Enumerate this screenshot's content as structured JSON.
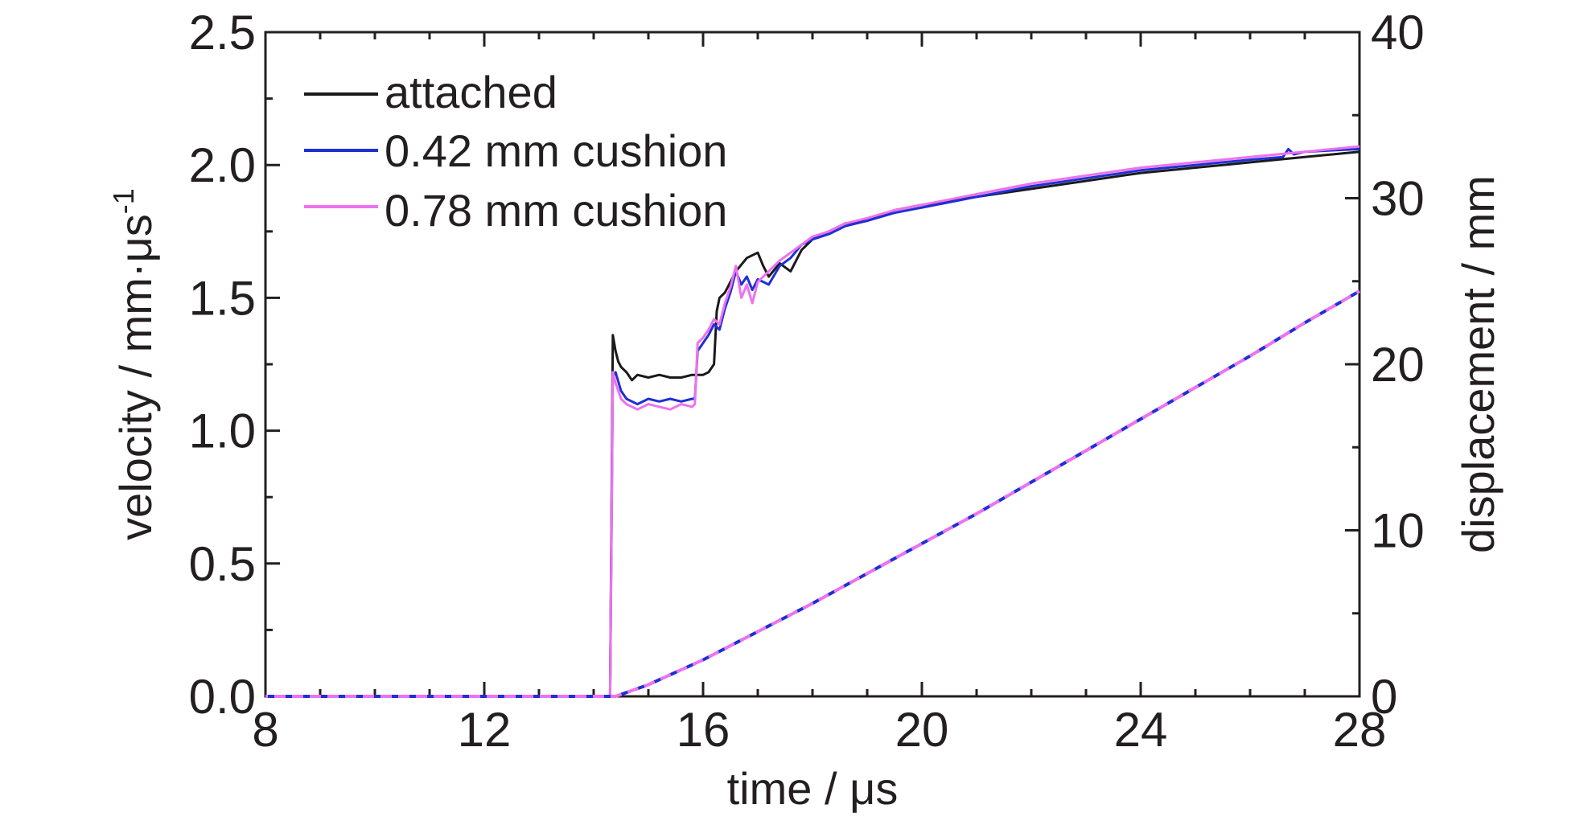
{
  "chart_data": {
    "type": "line",
    "xlabel": "time / μs",
    "ylabel_left": "velocity / mm·μs",
    "ylabel_left_superscript": "-1",
    "ylabel_right": "displacement / mm",
    "xlim": [
      8,
      28
    ],
    "ylim_left": [
      0.0,
      2.5
    ],
    "ylim_right": [
      0,
      40
    ],
    "x_ticks": [
      "8",
      "12",
      "16",
      "20",
      "24",
      "28"
    ],
    "y_left_ticks": [
      "0.0",
      "0.5",
      "1.0",
      "1.5",
      "2.0",
      "2.5"
    ],
    "y_right_ticks": [
      "0",
      "10",
      "20",
      "30",
      "40"
    ],
    "grid": false,
    "legend_position": "top-left",
    "legend": [
      {
        "label": "attached",
        "color": "#1a1a1a"
      },
      {
        "label": "0.42 mm cushion",
        "color": "#1f2fd6"
      },
      {
        "label": "0.78 mm cushion",
        "color": "#ee72ee"
      }
    ],
    "series": [
      {
        "name": "attached",
        "axis": "left",
        "color": "#1a1a1a",
        "dashed": false,
        "x": [
          8,
          14.3,
          14.35,
          14.4,
          14.45,
          14.5,
          14.6,
          14.7,
          14.8,
          15.0,
          15.2,
          15.4,
          15.6,
          15.8,
          16.0,
          16.1,
          16.2,
          16.25,
          16.3,
          16.4,
          16.6,
          16.8,
          17.0,
          17.1,
          17.2,
          17.4,
          17.6,
          17.8,
          18.0,
          18.3,
          18.6,
          19.0,
          19.5,
          20.0,
          21.0,
          22.0,
          23.0,
          24.0,
          25.0,
          26.0,
          27.0,
          28.0
        ],
        "y": [
          0.0,
          0.0,
          1.36,
          1.3,
          1.26,
          1.24,
          1.22,
          1.19,
          1.21,
          1.2,
          1.21,
          1.2,
          1.2,
          1.21,
          1.21,
          1.22,
          1.25,
          1.45,
          1.5,
          1.52,
          1.6,
          1.65,
          1.67,
          1.62,
          1.58,
          1.63,
          1.6,
          1.68,
          1.72,
          1.75,
          1.78,
          1.79,
          1.83,
          1.85,
          1.88,
          1.91,
          1.94,
          1.97,
          1.99,
          2.01,
          2.03,
          2.05
        ]
      },
      {
        "name": "0.42 mm cushion",
        "axis": "left",
        "color": "#1f2fd6",
        "dashed": false,
        "x": [
          8,
          14.3,
          14.35,
          14.4,
          14.5,
          14.6,
          14.8,
          15.0,
          15.2,
          15.4,
          15.6,
          15.8,
          15.85,
          15.9,
          16.0,
          16.1,
          16.2,
          16.3,
          16.4,
          16.5,
          16.6,
          16.7,
          16.8,
          16.9,
          17.0,
          17.2,
          17.4,
          17.6,
          17.8,
          18.0,
          18.3,
          18.6,
          19.0,
          19.5,
          20.0,
          20.5,
          21.0,
          22.0,
          23.0,
          24.0,
          25.0,
          26.0,
          26.6,
          26.7,
          26.8,
          27.0,
          28.0
        ],
        "y": [
          0.0,
          0.0,
          1.2,
          1.22,
          1.15,
          1.12,
          1.1,
          1.12,
          1.11,
          1.12,
          1.11,
          1.12,
          1.12,
          1.3,
          1.33,
          1.36,
          1.4,
          1.38,
          1.46,
          1.52,
          1.6,
          1.55,
          1.58,
          1.53,
          1.57,
          1.55,
          1.62,
          1.65,
          1.7,
          1.72,
          1.74,
          1.77,
          1.79,
          1.82,
          1.84,
          1.86,
          1.88,
          1.92,
          1.95,
          1.98,
          2.0,
          2.02,
          2.03,
          2.06,
          2.04,
          2.05,
          2.06
        ]
      },
      {
        "name": "0.78 mm cushion",
        "axis": "left",
        "color": "#ee72ee",
        "dashed": false,
        "x": [
          8,
          14.3,
          14.35,
          14.4,
          14.5,
          14.6,
          14.8,
          15.0,
          15.2,
          15.4,
          15.6,
          15.8,
          15.85,
          15.9,
          16.0,
          16.1,
          16.2,
          16.3,
          16.4,
          16.5,
          16.6,
          16.7,
          16.8,
          16.9,
          17.0,
          17.2,
          17.4,
          17.6,
          17.8,
          18.0,
          18.3,
          18.6,
          19.0,
          19.5,
          20.0,
          20.5,
          21.0,
          22.0,
          23.0,
          24.0,
          25.0,
          26.0,
          27.0,
          28.0
        ],
        "y": [
          0.0,
          0.0,
          1.22,
          1.18,
          1.12,
          1.1,
          1.08,
          1.1,
          1.09,
          1.08,
          1.1,
          1.09,
          1.1,
          1.33,
          1.35,
          1.38,
          1.42,
          1.4,
          1.48,
          1.54,
          1.62,
          1.5,
          1.55,
          1.48,
          1.56,
          1.6,
          1.64,
          1.67,
          1.7,
          1.73,
          1.75,
          1.78,
          1.8,
          1.83,
          1.85,
          1.87,
          1.89,
          1.93,
          1.96,
          1.99,
          2.01,
          2.03,
          2.05,
          2.07
        ]
      },
      {
        "name": "0.42 mm cushion",
        "axis": "right",
        "color": "#1f2fd6",
        "dashed": true,
        "x": [
          8,
          14.4,
          15.0,
          16.0,
          17.0,
          18.0,
          19.0,
          20.0,
          21.0,
          22.0,
          23.0,
          24.0,
          25.0,
          26.0,
          27.0,
          28.0
        ],
        "y": [
          0,
          0,
          0.7,
          2.2,
          3.9,
          5.6,
          7.4,
          9.2,
          11.0,
          12.9,
          14.8,
          16.7,
          18.6,
          20.5,
          22.5,
          24.4
        ]
      },
      {
        "name": "0.78 mm cushion",
        "axis": "right",
        "color": "#ee72ee",
        "dashed": true,
        "x": [
          8,
          14.4,
          15.0,
          16.0,
          17.0,
          18.0,
          19.0,
          20.0,
          21.0,
          22.0,
          23.0,
          24.0,
          25.0,
          26.0,
          27.0,
          28.0
        ],
        "y": [
          0,
          0,
          0.7,
          2.2,
          3.9,
          5.6,
          7.4,
          9.2,
          11.0,
          12.9,
          14.8,
          16.7,
          18.6,
          20.5,
          22.5,
          24.4
        ]
      }
    ]
  }
}
